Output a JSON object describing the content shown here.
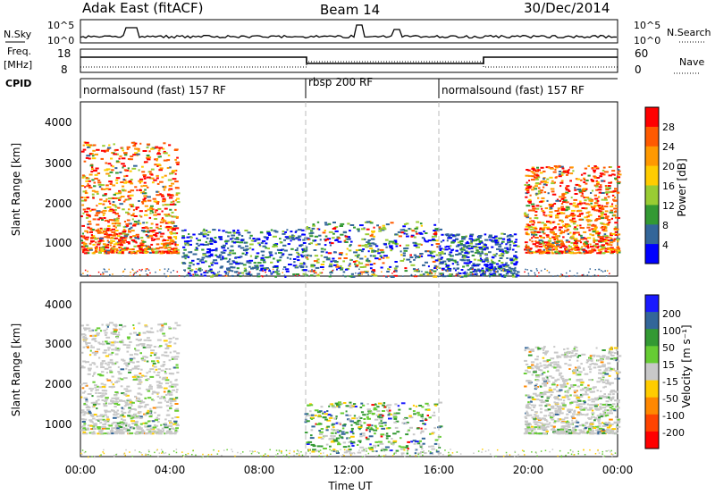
{
  "header": {
    "left_title": "Adak East (fitACF)",
    "center_title": "Beam 14",
    "right_title": "30/Dec/2014"
  },
  "noise_panel": {
    "left_label": "N.Sky",
    "right_label": "N.Search",
    "left_ticks": [
      "10^5",
      "10^0"
    ],
    "right_ticks": [
      "10^5",
      "10^0"
    ]
  },
  "freq_panel": {
    "left_label_1": "Freq.",
    "left_label_2": "[MHz]",
    "right_label": "Nave",
    "left_ticks": [
      "18",
      "8"
    ],
    "right_ticks": [
      "60",
      "0"
    ]
  },
  "cpid_panel": {
    "label": "CPID",
    "segments": [
      {
        "text": "normalsound (fast) 157 RF",
        "start": 0,
        "end": 10
      },
      {
        "text": "rbsp 200 RF",
        "start": 10,
        "end": 16
      },
      {
        "text": "normalsound (fast) 157 RF",
        "start": 16,
        "end": 24
      }
    ]
  },
  "x_axis": {
    "label": "Time UT",
    "ticks": [
      "00:00",
      "04:00",
      "08:00",
      "12:00",
      "16:00",
      "20:00",
      "00:00"
    ]
  },
  "power_panel": {
    "ylabel": "Slant Range [km]",
    "yticks": [
      "4000",
      "3000",
      "2000",
      "1000"
    ],
    "colorbar_label": "Power [dB]",
    "colorbar_ticks": [
      "28",
      "24",
      "20",
      "16",
      "12",
      "8",
      "4"
    ],
    "colorbar_colors": [
      "#ff0000",
      "#ff5a00",
      "#ff9900",
      "#ffcc00",
      "#99cc33",
      "#339933",
      "#336699",
      "#0000ff"
    ]
  },
  "velocity_panel": {
    "ylabel": "Slant Range [km]",
    "yticks": [
      "4000",
      "3000",
      "2000",
      "1000"
    ],
    "colorbar_label": "Velocity [m s⁻¹]",
    "colorbar_ticks": [
      "200",
      "100",
      "50",
      "15",
      "-15",
      "-50",
      "-100",
      "-200"
    ],
    "colorbar_colors": [
      "#1a1aff",
      "#336699",
      "#339933",
      "#66cc33",
      "#c8c8c8",
      "#ffcc00",
      "#ff8800",
      "#ff4400",
      "#ff0000"
    ]
  },
  "chart_data": {
    "type": "heatmap",
    "x_range_hours": [
      0,
      24
    ],
    "y_range_km": [
      200,
      4600
    ],
    "mode_change_lines_hours": [
      10,
      16
    ],
    "power_regions": [
      {
        "x": [
          0.0,
          4.3
        ],
        "y": [
          800,
          3600
        ],
        "level": "high"
      },
      {
        "x": [
          4.5,
          10.0
        ],
        "y": [
          200,
          1400
        ],
        "level": "low"
      },
      {
        "x": [
          10.0,
          16.0
        ],
        "y": [
          200,
          1600
        ],
        "level": "mixed"
      },
      {
        "x": [
          16.0,
          19.5
        ],
        "y": [
          200,
          1300
        ],
        "level": "low"
      },
      {
        "x": [
          19.8,
          24.0
        ],
        "y": [
          800,
          3000
        ],
        "level": "high"
      }
    ],
    "velocity_regions": [
      {
        "x": [
          0.0,
          4.3
        ],
        "y": [
          800,
          3600
        ],
        "level": "near-zero"
      },
      {
        "x": [
          10.0,
          16.0
        ],
        "y": [
          300,
          1600
        ],
        "level": "mixed"
      },
      {
        "x": [
          19.8,
          24.0
        ],
        "y": [
          800,
          3000
        ],
        "level": "near-zero"
      }
    ]
  }
}
